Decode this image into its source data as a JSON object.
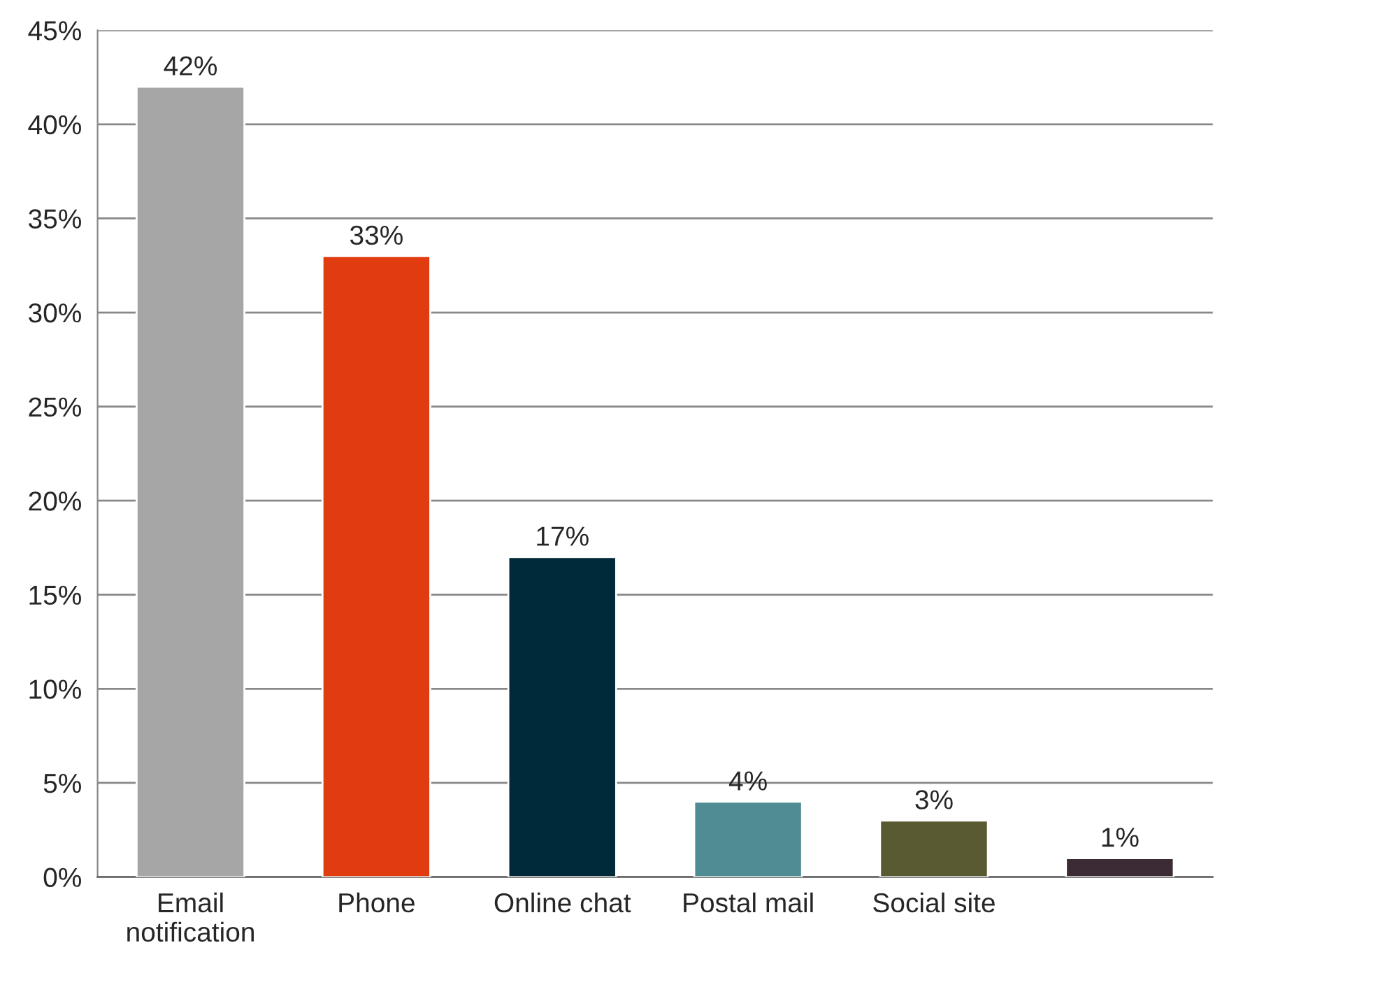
{
  "chart_data": {
    "type": "bar",
    "categories": [
      "Email\nnotification",
      "Phone",
      "Online chat",
      "Postal mail",
      "Social site",
      null
    ],
    "values": [
      42,
      33,
      17,
      4,
      3,
      1
    ],
    "colors": [
      "#a6a6a6",
      "#e03c10",
      "#002a3a",
      "#4f8c94",
      "#5a5a32",
      "#3c2a35"
    ],
    "value_labels": [
      "42%",
      "33%",
      "17%",
      "4%",
      "3%",
      "1%"
    ],
    "ylim": [
      0,
      45
    ],
    "yticks": [
      {
        "value": 0,
        "label": "0%"
      },
      {
        "value": 5,
        "label": "5%"
      },
      {
        "value": 10,
        "label": "10%"
      },
      {
        "value": 15,
        "label": "15%"
      },
      {
        "value": 20,
        "label": "20%"
      },
      {
        "value": 25,
        "label": "25%"
      },
      {
        "value": 30,
        "label": "30%"
      },
      {
        "value": 35,
        "label": "35%"
      },
      {
        "value": 40,
        "label": "40%"
      },
      {
        "value": 45,
        "label": "45%"
      }
    ],
    "grid": "y",
    "legend": false
  }
}
